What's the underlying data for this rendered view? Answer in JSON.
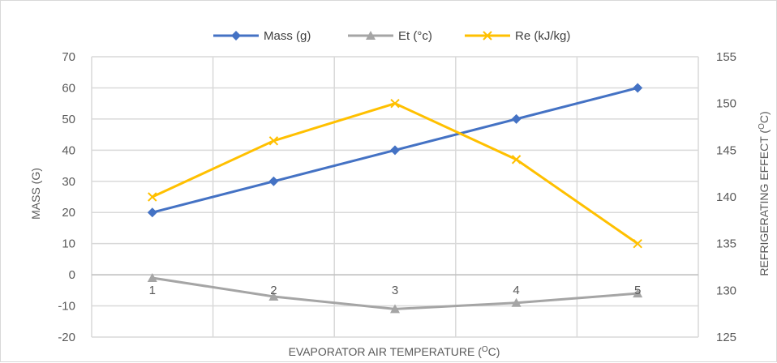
{
  "chart_data": {
    "type": "line",
    "categories": [
      "1",
      "2",
      "3",
      "4",
      "5"
    ],
    "series": [
      {
        "name": "Mass (g)",
        "axis": "left",
        "values": [
          20,
          30,
          40,
          50,
          60
        ],
        "color": "#4472c4",
        "marker": "diamond"
      },
      {
        "name": "Et (°c)",
        "axis": "left",
        "values": [
          -1,
          -7,
          -11,
          -9,
          -6
        ],
        "color": "#a5a5a5",
        "marker": "triangle"
      },
      {
        "name": "Re (kJ/kg)",
        "axis": "right",
        "values": [
          140,
          146,
          150,
          144,
          135
        ],
        "color": "#ffc000",
        "marker": "x"
      }
    ],
    "xlabel": "EVAPORATOR AIR TEMPERATURE (",
    "xlabel_sup": "O",
    "xlabel_suffix": "C)",
    "ylabel": "MASS (G)",
    "y2label": "REFRIGERATING EFFECT (",
    "y2label_sup": "O",
    "y2label_suffix": "C)",
    "ylim": [
      -20,
      70
    ],
    "yticks": [
      "-20",
      "-10",
      "0",
      "10",
      "20",
      "30",
      "40",
      "50",
      "60",
      "70"
    ],
    "y2lim": [
      125,
      155
    ],
    "y2ticks": [
      "125",
      "130",
      "135",
      "140",
      "145",
      "150",
      "155"
    ],
    "grid": true,
    "legend_position": "top"
  }
}
